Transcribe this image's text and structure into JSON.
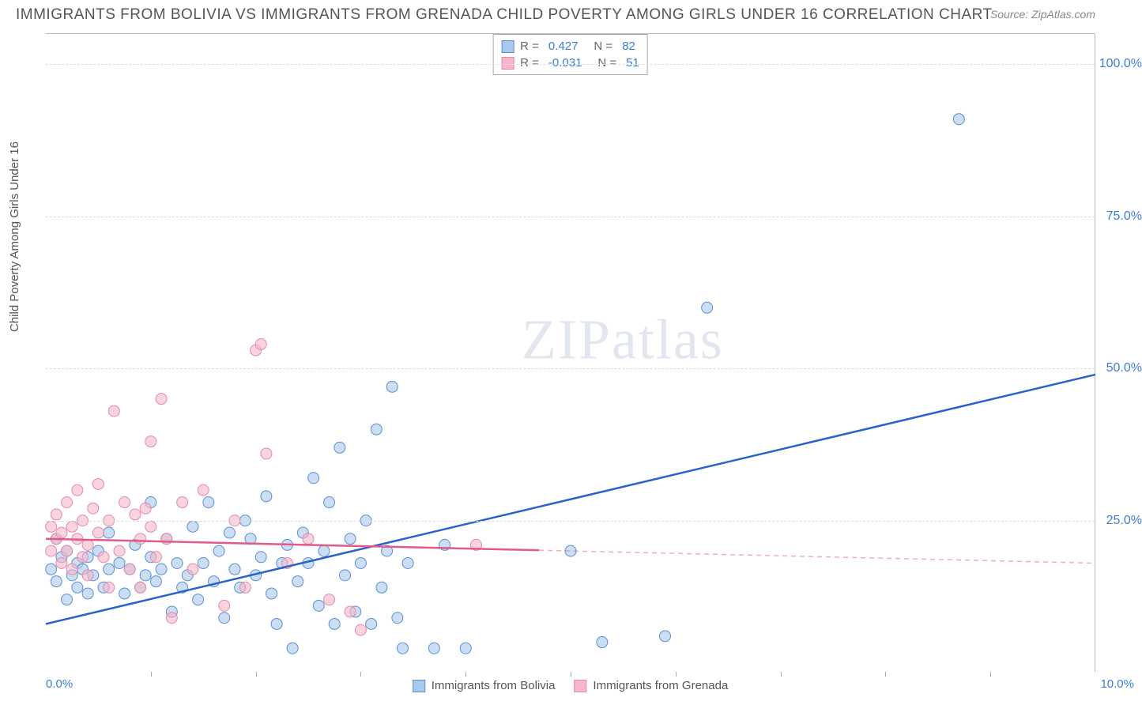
{
  "title": "IMMIGRANTS FROM BOLIVIA VS IMMIGRANTS FROM GRENADA CHILD POVERTY AMONG GIRLS UNDER 16 CORRELATION CHART",
  "source": "Source: ZipAtlas.com",
  "watermark": "ZIPatlas",
  "y_axis_label": "Child Poverty Among Girls Under 16",
  "chart": {
    "type": "scatter",
    "background_color": "#ffffff",
    "grid_color": "#dddddd",
    "border_color": "#bbbbbb",
    "xlim": [
      0,
      10
    ],
    "ylim": [
      0,
      105
    ],
    "y_ticks": [
      25,
      50,
      75,
      100
    ],
    "y_tick_labels": [
      "25.0%",
      "50.0%",
      "75.0%",
      "100.0%"
    ],
    "x_ticks": [
      1,
      2,
      3,
      4,
      5,
      6,
      7,
      8,
      9
    ],
    "x_tick_labels_ends": {
      "left": "0.0%",
      "right": "10.0%"
    },
    "series": [
      {
        "name": "Immigrants from Bolivia",
        "fill_color": "#a8c8ec",
        "stroke_color": "#5a8fd4",
        "line_color": "#2962c9",
        "marker_radius": 7,
        "fill_opacity": 0.6,
        "r_value": "0.427",
        "n_value": "82",
        "trend": {
          "x1": 0,
          "y1": 8,
          "x2": 10,
          "y2": 49,
          "dashed_from_x": null
        },
        "points": [
          [
            0.05,
            17
          ],
          [
            0.1,
            22
          ],
          [
            0.1,
            15
          ],
          [
            0.15,
            19
          ],
          [
            0.2,
            12
          ],
          [
            0.2,
            20
          ],
          [
            0.25,
            16
          ],
          [
            0.3,
            18
          ],
          [
            0.3,
            14
          ],
          [
            0.35,
            17
          ],
          [
            0.4,
            13
          ],
          [
            0.4,
            19
          ],
          [
            0.45,
            16
          ],
          [
            0.5,
            20
          ],
          [
            0.55,
            14
          ],
          [
            0.6,
            17
          ],
          [
            0.6,
            23
          ],
          [
            0.7,
            18
          ],
          [
            0.75,
            13
          ],
          [
            0.8,
            17
          ],
          [
            0.85,
            21
          ],
          [
            0.9,
            14
          ],
          [
            0.95,
            16
          ],
          [
            1.0,
            19
          ],
          [
            1.0,
            28
          ],
          [
            1.05,
            15
          ],
          [
            1.1,
            17
          ],
          [
            1.15,
            22
          ],
          [
            1.2,
            10
          ],
          [
            1.25,
            18
          ],
          [
            1.3,
            14
          ],
          [
            1.35,
            16
          ],
          [
            1.4,
            24
          ],
          [
            1.45,
            12
          ],
          [
            1.5,
            18
          ],
          [
            1.55,
            28
          ],
          [
            1.6,
            15
          ],
          [
            1.65,
            20
          ],
          [
            1.7,
            9
          ],
          [
            1.75,
            23
          ],
          [
            1.8,
            17
          ],
          [
            1.85,
            14
          ],
          [
            1.9,
            25
          ],
          [
            1.95,
            22
          ],
          [
            2.0,
            16
          ],
          [
            2.05,
            19
          ],
          [
            2.1,
            29
          ],
          [
            2.15,
            13
          ],
          [
            2.2,
            8
          ],
          [
            2.25,
            18
          ],
          [
            2.3,
            21
          ],
          [
            2.35,
            4
          ],
          [
            2.4,
            15
          ],
          [
            2.45,
            23
          ],
          [
            2.5,
            18
          ],
          [
            2.55,
            32
          ],
          [
            2.6,
            11
          ],
          [
            2.65,
            20
          ],
          [
            2.7,
            28
          ],
          [
            2.75,
            8
          ],
          [
            2.8,
            37
          ],
          [
            2.85,
            16
          ],
          [
            2.9,
            22
          ],
          [
            2.95,
            10
          ],
          [
            3.0,
            18
          ],
          [
            3.05,
            25
          ],
          [
            3.1,
            8
          ],
          [
            3.15,
            40
          ],
          [
            3.2,
            14
          ],
          [
            3.25,
            20
          ],
          [
            3.3,
            47
          ],
          [
            3.35,
            9
          ],
          [
            3.4,
            4
          ],
          [
            3.45,
            18
          ],
          [
            3.7,
            4
          ],
          [
            3.8,
            21
          ],
          [
            4.0,
            4
          ],
          [
            5.0,
            20
          ],
          [
            5.3,
            5
          ],
          [
            5.9,
            6
          ],
          [
            6.3,
            60
          ],
          [
            8.7,
            91
          ]
        ]
      },
      {
        "name": "Immigrants from Grenada",
        "fill_color": "#f4b8c8",
        "stroke_color": "#e888a8",
        "line_color": "#e05a8a",
        "marker_radius": 7,
        "fill_opacity": 0.6,
        "r_value": "-0.031",
        "n_value": "51",
        "trend": {
          "x1": 0,
          "y1": 22,
          "x2": 10,
          "y2": 18,
          "dashed_from_x": 4.7
        },
        "points": [
          [
            0.05,
            24
          ],
          [
            0.05,
            20
          ],
          [
            0.1,
            22
          ],
          [
            0.1,
            26
          ],
          [
            0.15,
            18
          ],
          [
            0.15,
            23
          ],
          [
            0.2,
            20
          ],
          [
            0.2,
            28
          ],
          [
            0.25,
            24
          ],
          [
            0.25,
            17
          ],
          [
            0.3,
            22
          ],
          [
            0.3,
            30
          ],
          [
            0.35,
            19
          ],
          [
            0.35,
            25
          ],
          [
            0.4,
            21
          ],
          [
            0.4,
            16
          ],
          [
            0.45,
            27
          ],
          [
            0.5,
            23
          ],
          [
            0.5,
            31
          ],
          [
            0.55,
            19
          ],
          [
            0.6,
            25
          ],
          [
            0.6,
            14
          ],
          [
            0.65,
            43
          ],
          [
            0.7,
            20
          ],
          [
            0.75,
            28
          ],
          [
            0.8,
            17
          ],
          [
            0.85,
            26
          ],
          [
            0.9,
            22
          ],
          [
            0.9,
            14
          ],
          [
            0.95,
            27
          ],
          [
            1.0,
            24
          ],
          [
            1.0,
            38
          ],
          [
            1.05,
            19
          ],
          [
            1.1,
            45
          ],
          [
            1.15,
            22
          ],
          [
            1.2,
            9
          ],
          [
            1.3,
            28
          ],
          [
            1.4,
            17
          ],
          [
            1.5,
            30
          ],
          [
            1.7,
            11
          ],
          [
            1.8,
            25
          ],
          [
            1.9,
            14
          ],
          [
            2.0,
            53
          ],
          [
            2.05,
            54
          ],
          [
            2.1,
            36
          ],
          [
            2.3,
            18
          ],
          [
            2.5,
            22
          ],
          [
            2.7,
            12
          ],
          [
            2.9,
            10
          ],
          [
            3.0,
            7
          ],
          [
            4.1,
            21
          ]
        ]
      }
    ],
    "legend_top": {
      "r_label": "R =",
      "n_label": "N ="
    },
    "legend_bottom_labels": [
      "Immigrants from Bolivia",
      "Immigrants from Grenada"
    ]
  }
}
